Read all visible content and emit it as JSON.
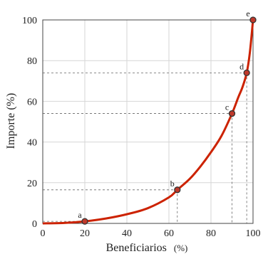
{
  "chart_data": {
    "type": "line",
    "xlabel": "Beneficiarios",
    "xlabel_unit": "(%)",
    "ylabel": "Importe (%)",
    "xlim": [
      0,
      100
    ],
    "ylim": [
      0,
      100
    ],
    "xticks": [
      "0",
      "20",
      "40",
      "60",
      "80",
      "100"
    ],
    "yticks": [
      "0",
      "20",
      "40",
      "60",
      "80",
      "100"
    ],
    "grid": true,
    "colors": {
      "curve": "#cc2200",
      "marker_fill": "#c0392b",
      "marker_edge": "#333333"
    },
    "points": [
      {
        "label": "a",
        "x": 20,
        "y": 1
      },
      {
        "label": "b",
        "x": 64,
        "y": 16.5
      },
      {
        "label": "c",
        "x": 90,
        "y": 54
      },
      {
        "label": "d",
        "x": 97,
        "y": 74
      },
      {
        "label": "e",
        "x": 100,
        "y": 100
      }
    ],
    "curve": {
      "x": [
        0,
        10,
        20,
        30,
        40,
        50,
        60,
        64,
        70,
        75,
        80,
        85,
        90,
        93,
        95,
        97,
        98.5,
        100
      ],
      "y": [
        0,
        0.2,
        1,
        2.4,
        4.5,
        7.5,
        12.8,
        16.5,
        22,
        28,
        35,
        43,
        54,
        62,
        67,
        74,
        84,
        100
      ]
    }
  }
}
